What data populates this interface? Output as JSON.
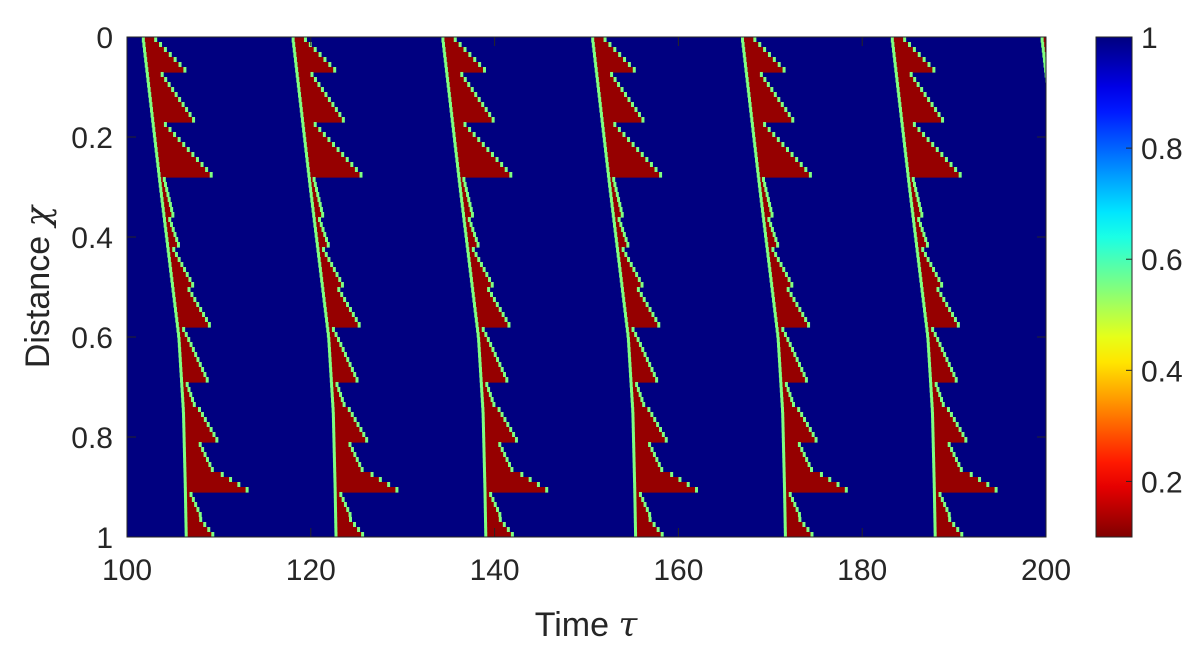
{
  "chart_data": {
    "type": "heatmap",
    "title": "",
    "xlabel": "Time",
    "xlabel_symbol": "τ",
    "ylabel": "Distance",
    "ylabel_symbol": "χ",
    "xlim": [
      100,
      200
    ],
    "ylim": [
      0,
      1
    ],
    "y_reversed": true,
    "x_ticks": [
      100,
      120,
      140,
      160,
      180,
      200
    ],
    "x_tick_labels": [
      "100",
      "120",
      "140",
      "160",
      "180",
      "200"
    ],
    "y_ticks": [
      0,
      0.2,
      0.4,
      0.6,
      0.8,
      1
    ],
    "y_tick_labels": [
      "0",
      "0.2",
      "0.4",
      "0.6",
      "0.8",
      "1"
    ],
    "colorbar": {
      "colormap": "jet",
      "reversed": true,
      "range": [
        0.1,
        1
      ],
      "ticks": [
        0.2,
        0.4,
        0.6,
        0.8,
        1
      ],
      "tick_labels": [
        "0.2",
        "0.4",
        "0.6",
        "0.8",
        "1"
      ]
    },
    "background_value": 1.0,
    "wave_low_value": 0.12,
    "wave_period": 16.3,
    "wave_start_times_at_top": [
      101.8,
      118.1,
      134.4,
      150.7,
      167.0,
      183.3,
      199.6
    ],
    "front_delay_profile": {
      "distance": [
        0,
        0.3,
        0.6,
        0.75,
        0.9,
        1.0
      ],
      "delay": [
        0,
        1.9,
        3.9,
        4.4,
        4.6,
        4.7
      ]
    },
    "segments": [
      {
        "distance": [
          0.0,
          0.075
        ],
        "duration": [
          1.0,
          4.5
        ]
      },
      {
        "distance": [
          0.075,
          0.17
        ],
        "duration": [
          1.5,
          4.5
        ]
      },
      {
        "distance": [
          0.17,
          0.285
        ],
        "duration": [
          1.0,
          6.0
        ]
      },
      {
        "distance": [
          0.285,
          0.36
        ],
        "duration": [
          0.4,
          0.9
        ]
      },
      {
        "distance": [
          0.36,
          0.425
        ],
        "duration": [
          0.4,
          1.2
        ]
      },
      {
        "distance": [
          0.425,
          0.5
        ],
        "duration": [
          0.5,
          2.2
        ]
      },
      {
        "distance": [
          0.5,
          0.58
        ],
        "duration": [
          1.5,
          3.5
        ]
      },
      {
        "distance": [
          0.58,
          0.69
        ],
        "duration": [
          0.4,
          2.8
        ]
      },
      {
        "distance": [
          0.69,
          0.74
        ],
        "duration": [
          0.4,
          1.2
        ]
      },
      {
        "distance": [
          0.74,
          0.81
        ],
        "duration": [
          1.5,
          3.6
        ]
      },
      {
        "distance": [
          0.81,
          0.87
        ],
        "duration": [
          1.5,
          3.0
        ]
      },
      {
        "distance": [
          0.87,
          0.915
        ],
        "duration": [
          3.5,
          7.5
        ]
      },
      {
        "distance": [
          0.915,
          0.965
        ],
        "duration": [
          0.5,
          1.7
        ]
      },
      {
        "distance": [
          0.965,
          1.0
        ],
        "duration": [
          1.5,
          3.0
        ]
      }
    ]
  }
}
